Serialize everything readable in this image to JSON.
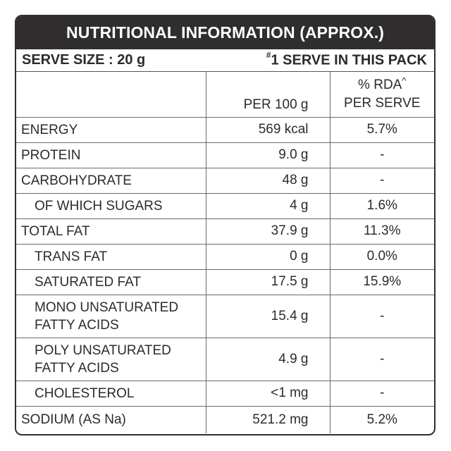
{
  "header": {
    "title": "NUTRITIONAL INFORMATION (APPROX.)"
  },
  "serve": {
    "size_label": "SERVE SIZE : 20 g",
    "pack_mark": "#",
    "pack_label": "1 SERVE IN THIS PACK"
  },
  "columns": {
    "per100": "PER 100 g",
    "rda_line1": "% RDA",
    "rda_mark": "^",
    "rda_line2": "PER SERVE"
  },
  "rows": [
    {
      "name": "ENERGY",
      "per100": "569 kcal",
      "rda": "5.7%"
    },
    {
      "name": "PROTEIN",
      "per100": "9.0 g",
      "rda": "-"
    },
    {
      "name": "CARBOHYDRATE",
      "per100": "48 g",
      "rda": "-"
    },
    {
      "name": "OF WHICH SUGARS",
      "per100": "4 g",
      "rda": "1.6%"
    },
    {
      "name": "TOTAL FAT",
      "per100": "37.9 g",
      "rda": "11.3%"
    },
    {
      "name": "TRANS FAT",
      "per100": "0 g",
      "rda": "0.0%"
    },
    {
      "name": "SATURATED FAT",
      "per100": "17.5 g",
      "rda": "15.9%"
    },
    {
      "name": "MONO UNSATURATED FATTY ACIDS",
      "name_line1": "MONO UNSATURATED",
      "name_line2": "FATTY ACIDS",
      "per100": "15.4 g",
      "rda": "-"
    },
    {
      "name": "POLY UNSATURATED FATTY ACIDS",
      "name_line1": "POLY UNSATURATED",
      "name_line2": "FATTY ACIDS",
      "per100": "4.9 g",
      "rda": "-"
    },
    {
      "name": "CHOLESTEROL",
      "per100": "<1 mg",
      "rda": "-"
    },
    {
      "name": "SODIUM (AS Na)",
      "per100": "521.2 mg",
      "rda": "5.2%"
    }
  ]
}
